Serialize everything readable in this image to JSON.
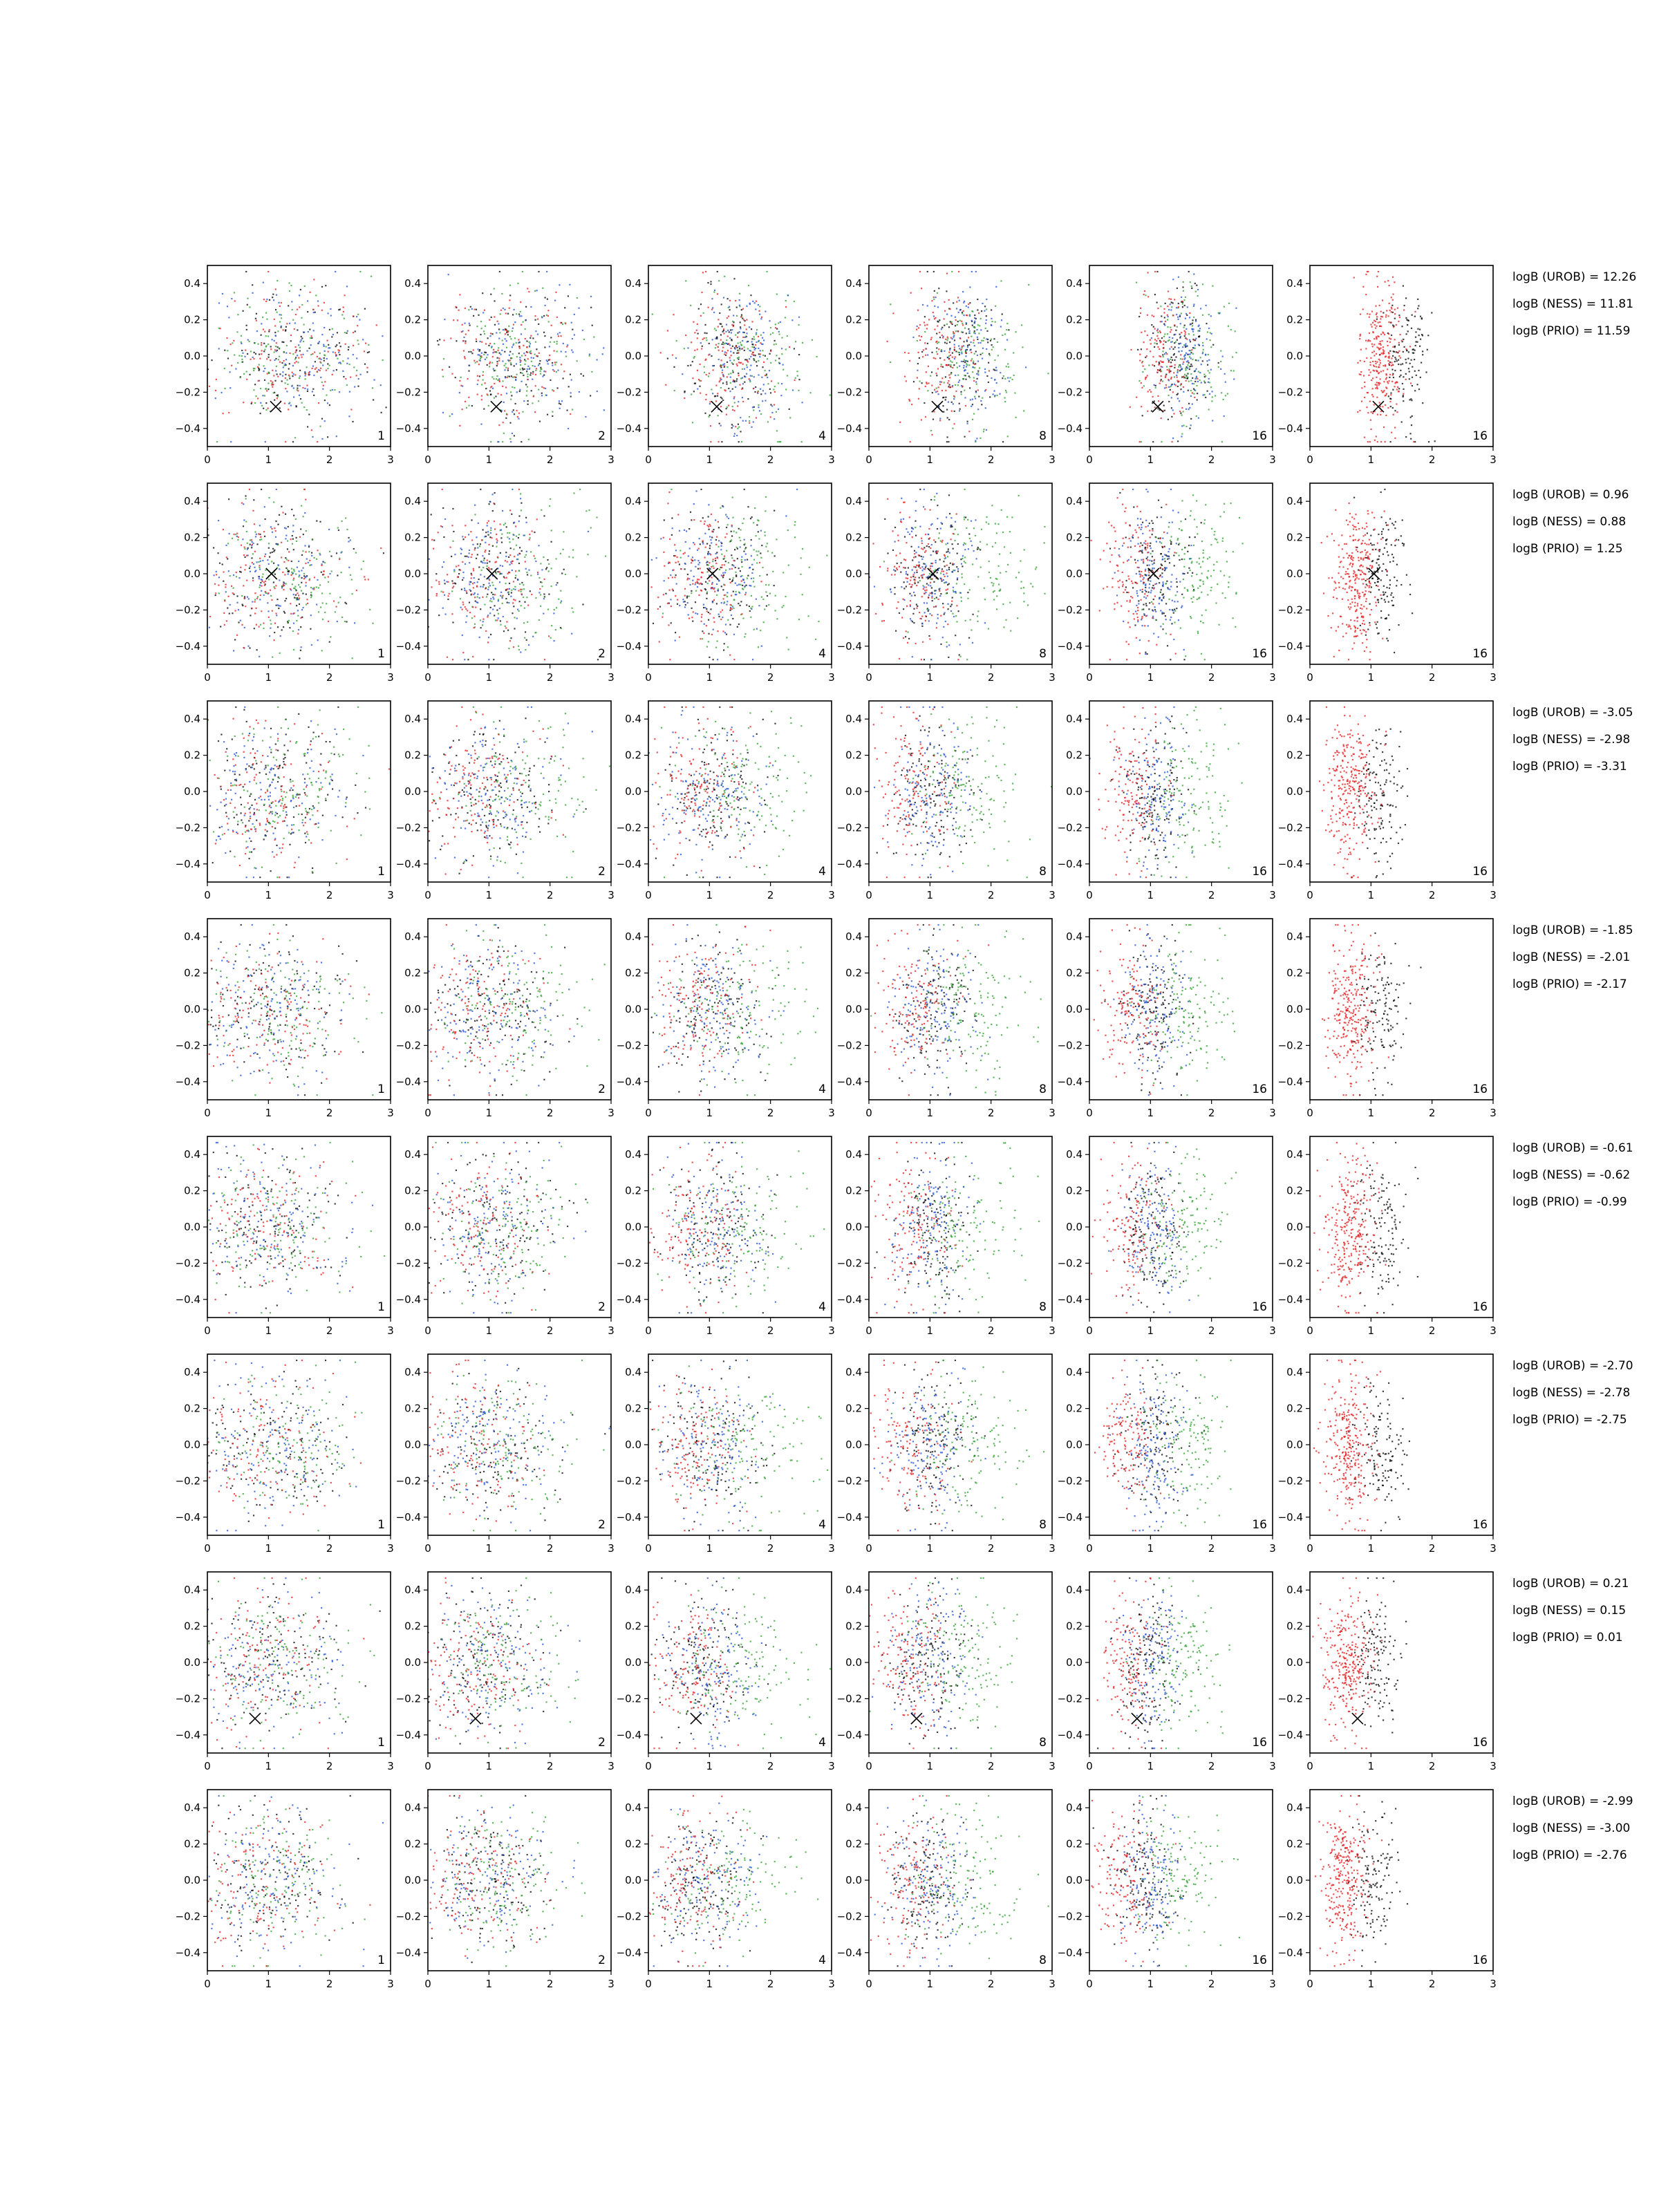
{
  "chart_data": {
    "type": "scatter",
    "layout": {
      "rows": 8,
      "cols": 6
    },
    "axes": {
      "xlim": [
        0,
        3
      ],
      "ylim": [
        -0.5,
        0.5
      ],
      "xticks": [
        0,
        1,
        2,
        3
      ],
      "yticks": [
        -0.4,
        -0.2,
        0.0,
        0.2,
        0.4
      ]
    },
    "xtick_labels": [
      "0",
      "1",
      "2",
      "3"
    ],
    "ytick_labels": [
      "−0.4",
      "−0.2",
      "0.0",
      "0.2",
      "0.4"
    ],
    "panel_labels": [
      "1",
      "2",
      "4",
      "8",
      "16",
      "16"
    ],
    "series_colors": {
      "black": "#000000",
      "green": "#2ca02c",
      "blue": "#1f4fd6",
      "red": "#e41a1c"
    },
    "marker": {
      "symbol": "x",
      "color": "#000000"
    },
    "rows": [
      {
        "marker": [
          1.12,
          -0.28
        ],
        "logB": [
          "logB (UROB) = 12.26",
          "logB (NESS) = 11.81",
          "logB (PRIO) = 11.59"
        ]
      },
      {
        "marker": [
          1.05,
          0.0
        ],
        "logB": [
          "logB (UROB) = 0.96",
          "logB (NESS) = 0.88",
          "logB (PRIO) = 1.25"
        ]
      },
      {
        "marker": null,
        "logB": [
          "logB (UROB) = -3.05",
          "logB (NESS) = -2.98",
          "logB (PRIO) = -3.31"
        ]
      },
      {
        "marker": null,
        "logB": [
          "logB (UROB) = -1.85",
          "logB (NESS) = -2.01",
          "logB (PRIO) = -2.17"
        ]
      },
      {
        "marker": null,
        "logB": [
          "logB (UROB) = -0.61",
          "logB (NESS) = -0.62",
          "logB (PRIO) = -0.99"
        ]
      },
      {
        "marker": null,
        "logB": [
          "logB (UROB) = -2.70",
          "logB (NESS) = -2.78",
          "logB (PRIO) = -2.75"
        ]
      },
      {
        "marker": [
          0.78,
          -0.31
        ],
        "logB": [
          "logB (UROB) = 0.21",
          "logB (NESS) = 0.15",
          "logB (PRIO) = 0.01"
        ]
      },
      {
        "marker": null,
        "logB": [
          "logB (UROB) = -2.99",
          "logB (NESS) = -3.00",
          "logB (PRIO) = -2.76"
        ]
      }
    ]
  }
}
